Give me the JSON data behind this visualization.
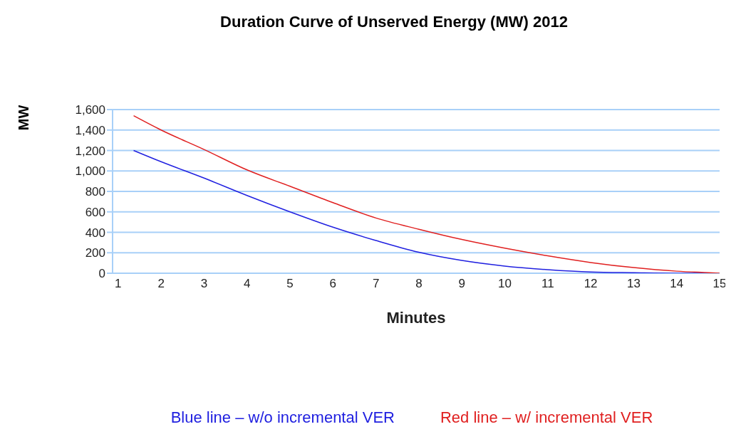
{
  "chart_data": {
    "type": "line",
    "title": "Duration Curve of Unserved Energy (MW) 2012",
    "xlabel": "Minutes",
    "ylabel": "MW",
    "x": [
      1.36,
      2,
      3,
      4,
      5,
      6,
      7,
      8,
      9,
      10,
      11,
      12,
      13,
      14,
      14.75,
      15
    ],
    "series": [
      {
        "name": "Blue line – w/o incremental VER",
        "color": "#2020e0",
        "values": [
          1200,
          1090,
          930,
          760,
          600,
          450,
          320,
          205,
          125,
          70,
          35,
          12,
          5,
          0,
          0,
          null
        ]
      },
      {
        "name": "Red line – w/ incremental VER",
        "color": "#e02020",
        "values": [
          1540,
          1400,
          1210,
          1010,
          850,
          690,
          540,
          430,
          330,
          245,
          170,
          105,
          55,
          20,
          5,
          0
        ]
      }
    ],
    "xlim": [
      0.87,
      15
    ],
    "xticks": [
      1,
      2,
      3,
      4,
      5,
      6,
      7,
      8,
      9,
      10,
      11,
      12,
      13,
      14,
      15
    ],
    "ylim": [
      0,
      1600
    ],
    "yticks": [
      0,
      200,
      400,
      600,
      800,
      {
        "value": 1000,
        "label": "1,000"
      },
      {
        "value": 1200,
        "label": "1,200"
      },
      {
        "value": 1400,
        "label": "1,400"
      },
      {
        "value": 1600,
        "label": "1,600"
      }
    ],
    "grid": "y",
    "legend": "bottom",
    "marker": "none",
    "line_style": "solid"
  }
}
